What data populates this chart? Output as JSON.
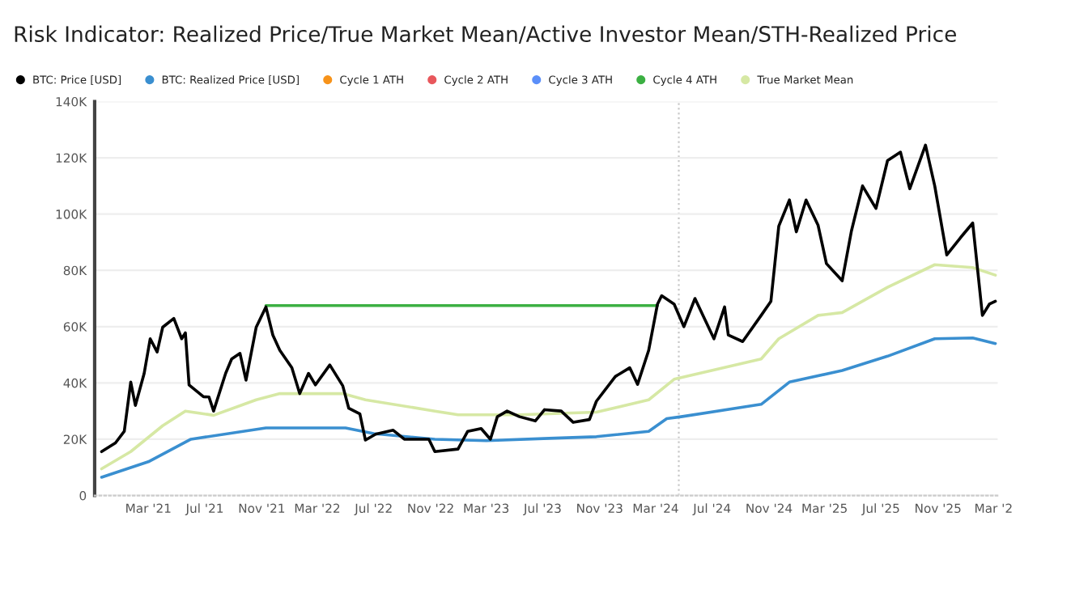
{
  "chart_data": {
    "type": "line",
    "title": "Risk Indicator: Realized Price/True Market Mean/Active Investor Mean/STH-Realized Price",
    "series": [
      {
        "name": "BTC: Price [USD]",
        "color": "#000000",
        "x": [
          "2020-11-20",
          "2020-12-20",
          "2021-01-08",
          "2021-01-22",
          "2021-02-01",
          "2021-02-20",
          "2021-03-05",
          "2021-03-20",
          "2021-04-01",
          "2021-04-25",
          "2021-05-12",
          "2021-05-20",
          "2021-05-28",
          "2021-06-28",
          "2021-07-10",
          "2021-07-20",
          "2021-08-15",
          "2021-08-28",
          "2021-09-15",
          "2021-09-28",
          "2021-10-20",
          "2021-11-10",
          "2021-11-25",
          "2021-12-10",
          "2022-01-05",
          "2022-01-22",
          "2022-02-10",
          "2022-02-25",
          "2022-03-28",
          "2022-04-25",
          "2022-05-08",
          "2022-06-01",
          "2022-06-13",
          "2022-07-05",
          "2022-08-12",
          "2022-09-05",
          "2022-10-28",
          "2022-11-10",
          "2022-12-30",
          "2023-01-20",
          "2023-02-18",
          "2023-03-10",
          "2023-03-25",
          "2023-04-15",
          "2023-05-12",
          "2023-06-15",
          "2023-07-05",
          "2023-08-10",
          "2023-09-05",
          "2023-10-10",
          "2023-10-25",
          "2023-12-05",
          "2024-01-05",
          "2024-01-22",
          "2024-02-15",
          "2024-03-05",
          "2024-03-14",
          "2024-04-10",
          "2024-05-01",
          "2024-05-25",
          "2024-07-05",
          "2024-07-28",
          "2024-08-05",
          "2024-09-05",
          "2024-10-15",
          "2024-11-05",
          "2024-11-22",
          "2024-12-15",
          "2024-12-30",
          "2025-01-20",
          "2025-02-15",
          "2025-03-05",
          "2025-04-08",
          "2025-04-28",
          "2025-05-22",
          "2025-06-20",
          "2025-07-15",
          "2025-08-12",
          "2025-09-01",
          "2025-10-05",
          "2025-10-25",
          "2025-11-20",
          "2025-12-20",
          "2026-01-15",
          "2026-02-05",
          "2026-02-20",
          "2026-03-05"
        ],
        "values": [
          15600,
          18700,
          22800,
          40300,
          32000,
          43400,
          55700,
          51000,
          59800,
          62900,
          55700,
          57800,
          39300,
          35100,
          35000,
          30000,
          43400,
          48500,
          50500,
          41000,
          59800,
          67000,
          57000,
          51600,
          45400,
          36200,
          43400,
          39300,
          46400,
          39000,
          31000,
          29000,
          19700,
          21800,
          23200,
          20000,
          20000,
          15600,
          16500,
          22800,
          23800,
          20000,
          28000,
          30000,
          28000,
          26500,
          30500,
          30000,
          26000,
          27000,
          33500,
          42300,
          45400,
          39500,
          51600,
          68000,
          71000,
          68000,
          60000,
          70000,
          55700,
          67000,
          57000,
          54700,
          64000,
          69000,
          95700,
          105000,
          93700,
          105000,
          96000,
          82400,
          76300,
          94000,
          110000,
          102000,
          119000,
          122000,
          109000,
          124500,
          110000,
          85500,
          91700,
          96800,
          64000,
          68000,
          69000
        ]
      },
      {
        "name": "BTC: Realized Price [USD]",
        "color": "#3a8fd0",
        "x": [
          "2020-11-20",
          "2021-03-01",
          "2021-06-01",
          "2021-11-10",
          "2022-05-01",
          "2022-07-01",
          "2022-11-10",
          "2023-03-01",
          "2023-07-15",
          "2023-10-25",
          "2024-02-15",
          "2024-03-25",
          "2024-04-25",
          "2024-10-15",
          "2024-12-15",
          "2025-04-08",
          "2025-07-15",
          "2025-10-25",
          "2026-01-15",
          "2026-03-05"
        ],
        "values": [
          6500,
          12000,
          20000,
          24000,
          24000,
          22000,
          20000,
          19500,
          20300,
          20900,
          22800,
          27300,
          28000,
          32400,
          40300,
          44400,
          49500,
          55700,
          56000,
          54000
        ]
      },
      {
        "name": "Cycle 1 ATH",
        "color": "#f7931a"
      },
      {
        "name": "Cycle 2 ATH",
        "color": "#e8575c"
      },
      {
        "name": "Cycle 3 ATH",
        "color": "#5b8ff9"
      },
      {
        "name": "Cycle 4 ATH",
        "color": "#3cb043",
        "x": [
          "2021-11-10",
          "2024-03-05"
        ],
        "values": [
          67500,
          67500
        ]
      },
      {
        "name": "True Market Mean",
        "color": "#d6e8a4",
        "x": [
          "2020-11-20",
          "2021-01-22",
          "2021-04-01",
          "2021-05-20",
          "2021-07-20",
          "2021-10-20",
          "2021-12-10",
          "2022-04-25",
          "2022-06-13",
          "2022-11-10",
          "2022-12-30",
          "2023-05-12",
          "2023-10-25",
          "2024-02-15",
          "2024-04-10",
          "2024-10-15",
          "2024-11-22",
          "2025-02-15",
          "2025-04-08",
          "2025-07-15",
          "2025-10-25",
          "2026-01-15",
          "2026-03-05"
        ],
        "values": [
          9500,
          15600,
          24800,
          30000,
          28500,
          34000,
          36200,
          36200,
          34000,
          30000,
          28700,
          28700,
          29600,
          34000,
          41300,
          48500,
          55700,
          64000,
          65000,
          74000,
          82000,
          81000,
          78300
        ]
      }
    ],
    "xlim": [
      "2020-11-05",
      "2026-03-10"
    ],
    "xticks": [
      {
        "value": "2021-03-01",
        "label": "Mar '21"
      },
      {
        "value": "2021-07-01",
        "label": "Jul '21"
      },
      {
        "value": "2021-11-01",
        "label": "Nov '21"
      },
      {
        "value": "2022-03-01",
        "label": "Mar '22"
      },
      {
        "value": "2022-07-01",
        "label": "Jul '22"
      },
      {
        "value": "2022-11-01",
        "label": "Nov '22"
      },
      {
        "value": "2023-03-01",
        "label": "Mar '23"
      },
      {
        "value": "2023-07-01",
        "label": "Jul '23"
      },
      {
        "value": "2023-11-01",
        "label": "Nov '23"
      },
      {
        "value": "2024-03-01",
        "label": "Mar '24"
      },
      {
        "value": "2024-07-01",
        "label": "Jul '24"
      },
      {
        "value": "2024-11-01",
        "label": "Nov '24"
      },
      {
        "value": "2025-03-01",
        "label": "Mar '25"
      },
      {
        "value": "2025-07-01",
        "label": "Jul '25"
      },
      {
        "value": "2025-11-01",
        "label": "Nov '25"
      },
      {
        "value": "2026-03-01",
        "label": "Mar '2"
      }
    ],
    "ylim": [
      0,
      140000
    ],
    "yticks": [
      0,
      {
        "value": 20000,
        "label": "20K"
      },
      {
        "value": 40000,
        "label": "40K"
      },
      {
        "value": 60000,
        "label": "60K"
      },
      {
        "value": 80000,
        "label": "80K"
      },
      {
        "value": 100000,
        "label": "100K"
      },
      {
        "value": 120000,
        "label": "120K"
      },
      {
        "value": 140000,
        "label": "140K"
      }
    ],
    "ref_lines": [
      {
        "axis": "x",
        "value": "2024-04-20",
        "color": "#c8c8c8",
        "line_style": "dotted"
      }
    ],
    "grid": "y",
    "legend": "top left",
    "marker": "none",
    "line_style": "solid"
  }
}
